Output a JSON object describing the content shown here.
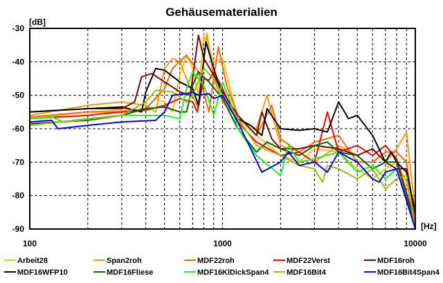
{
  "chart_data": {
    "type": "line",
    "title": "Gehäusematerialien",
    "ylabel": "[dB]",
    "xlabel": "[Hz]",
    "xscale": "log",
    "xlim": [
      100,
      10000
    ],
    "ylim": [
      -90,
      -30
    ],
    "yticks": [
      -30,
      -40,
      -50,
      -60,
      -70,
      -80,
      -90
    ],
    "xticks": [
      100,
      1000,
      10000
    ],
    "grid": true,
    "legend_placement": "bottom",
    "series": [
      {
        "name": "Arbeit28",
        "color": "#ffc000",
        "points": [
          [
            100,
            -57
          ],
          [
            200,
            -55
          ],
          [
            300,
            -54.5
          ],
          [
            400,
            -54
          ],
          [
            450,
            -51
          ],
          [
            500,
            -52
          ],
          [
            550,
            -55
          ],
          [
            600,
            -44
          ],
          [
            650,
            -38
          ],
          [
            700,
            -42
          ],
          [
            750,
            -50
          ],
          [
            800,
            -32
          ],
          [
            900,
            -40
          ],
          [
            1000,
            -39
          ],
          [
            1200,
            -57
          ],
          [
            1500,
            -62
          ],
          [
            2000,
            -68
          ],
          [
            2500,
            -70
          ],
          [
            3000,
            -66
          ],
          [
            4000,
            -67
          ],
          [
            5000,
            -72
          ],
          [
            6000,
            -75
          ],
          [
            7000,
            -72
          ],
          [
            8000,
            -70
          ],
          [
            9000,
            -76
          ],
          [
            10000,
            -87
          ]
        ]
      },
      {
        "name": "Span2roh",
        "color": "#ff9900",
        "points": [
          [
            100,
            -56
          ],
          [
            200,
            -53
          ],
          [
            300,
            -52
          ],
          [
            400,
            -53
          ],
          [
            450,
            -55
          ],
          [
            500,
            -42
          ],
          [
            550,
            -39
          ],
          [
            600,
            -40
          ],
          [
            650,
            -45
          ],
          [
            700,
            -50
          ],
          [
            750,
            -54
          ],
          [
            830,
            -31.5
          ],
          [
            900,
            -45
          ],
          [
            1000,
            -52
          ],
          [
            1200,
            -57
          ],
          [
            1500,
            -60
          ],
          [
            1700,
            -50
          ],
          [
            2000,
            -65
          ],
          [
            2500,
            -67
          ],
          [
            3000,
            -70
          ],
          [
            4000,
            -65
          ],
          [
            5000,
            -68
          ],
          [
            6000,
            -72
          ],
          [
            7000,
            -70
          ],
          [
            8000,
            -66
          ],
          [
            9000,
            -61
          ],
          [
            10000,
            -85
          ]
        ]
      },
      {
        "name": "MDF22roh",
        "color": "#ff6600",
        "points": [
          [
            100,
            -56.5
          ],
          [
            200,
            -55
          ],
          [
            300,
            -55
          ],
          [
            400,
            -54
          ],
          [
            500,
            -48
          ],
          [
            550,
            -42
          ],
          [
            650,
            -38
          ],
          [
            750,
            -43
          ],
          [
            850,
            -55
          ],
          [
            950,
            -35.5
          ],
          [
            1050,
            -47
          ],
          [
            1200,
            -56
          ],
          [
            1500,
            -62
          ],
          [
            1800,
            -53
          ],
          [
            2000,
            -63
          ],
          [
            2500,
            -67
          ],
          [
            3000,
            -64
          ],
          [
            4000,
            -62
          ],
          [
            5000,
            -70
          ],
          [
            6000,
            -70
          ],
          [
            7000,
            -67
          ],
          [
            8000,
            -67
          ],
          [
            9000,
            -70
          ],
          [
            10000,
            -88
          ]
        ]
      },
      {
        "name": "MDF22Verst",
        "color": "#ff0000",
        "points": [
          [
            100,
            -57
          ],
          [
            200,
            -56
          ],
          [
            300,
            -55
          ],
          [
            400,
            -54.5
          ],
          [
            500,
            -53
          ],
          [
            600,
            -51
          ],
          [
            700,
            -52
          ],
          [
            740,
            -55
          ],
          [
            800,
            -45
          ],
          [
            850,
            -45.5
          ],
          [
            900,
            -43
          ],
          [
            1000,
            -48
          ],
          [
            1200,
            -58
          ],
          [
            1500,
            -64
          ],
          [
            2000,
            -68
          ],
          [
            2500,
            -67
          ],
          [
            3000,
            -70
          ],
          [
            3500,
            -55
          ],
          [
            4000,
            -67
          ],
          [
            5000,
            -65
          ],
          [
            6000,
            -68
          ],
          [
            7000,
            -65
          ],
          [
            8000,
            -69
          ],
          [
            10000,
            -88
          ]
        ]
      },
      {
        "name": "MDF16roh",
        "color": "#800000",
        "points": [
          [
            100,
            -55
          ],
          [
            200,
            -54
          ],
          [
            300,
            -54
          ],
          [
            350,
            -52
          ],
          [
            380,
            -44.5
          ],
          [
            430,
            -43.5
          ],
          [
            500,
            -46
          ],
          [
            600,
            -49
          ],
          [
            680,
            -50
          ],
          [
            750,
            -32
          ],
          [
            800,
            -39
          ],
          [
            900,
            -44
          ],
          [
            1000,
            -49
          ],
          [
            1200,
            -56
          ],
          [
            1500,
            -62
          ],
          [
            1600,
            -55
          ],
          [
            1800,
            -63
          ],
          [
            2000,
            -66
          ],
          [
            2500,
            -66
          ],
          [
            3000,
            -65
          ],
          [
            4000,
            -66
          ],
          [
            5000,
            -68
          ],
          [
            6000,
            -66
          ],
          [
            7000,
            -70
          ],
          [
            8000,
            -72
          ],
          [
            9000,
            -72
          ],
          [
            10000,
            -86
          ]
        ]
      },
      {
        "name": "MDF16WFP10",
        "color": "#000000",
        "points": [
          [
            100,
            -55
          ],
          [
            200,
            -54
          ],
          [
            300,
            -53.5
          ],
          [
            380,
            -55
          ],
          [
            400,
            -49
          ],
          [
            450,
            -42
          ],
          [
            500,
            -42.5
          ],
          [
            600,
            -46
          ],
          [
            700,
            -48
          ],
          [
            750,
            -53
          ],
          [
            820,
            -34
          ],
          [
            900,
            -42
          ],
          [
            1000,
            -50
          ],
          [
            1200,
            -57
          ],
          [
            1400,
            -59
          ],
          [
            1600,
            -62
          ],
          [
            1700,
            -54
          ],
          [
            2000,
            -60
          ],
          [
            2500,
            -60.5
          ],
          [
            3000,
            -60
          ],
          [
            3500,
            -61
          ],
          [
            4000,
            -52
          ],
          [
            4500,
            -57
          ],
          [
            5000,
            -56
          ],
          [
            6000,
            -62
          ],
          [
            7000,
            -70
          ],
          [
            7500,
            -67
          ],
          [
            8000,
            -70
          ],
          [
            9000,
            -73
          ],
          [
            10000,
            -85
          ]
        ]
      },
      {
        "name": "MDF16Fliese",
        "color": "#006600",
        "points": [
          [
            100,
            -58.5
          ],
          [
            200,
            -57.5
          ],
          [
            300,
            -56
          ],
          [
            400,
            -54
          ],
          [
            500,
            -53.5
          ],
          [
            600,
            -55
          ],
          [
            650,
            -55
          ],
          [
            700,
            -47
          ],
          [
            750,
            -43
          ],
          [
            850,
            -46
          ],
          [
            1000,
            -51
          ],
          [
            1200,
            -60
          ],
          [
            1500,
            -67
          ],
          [
            1700,
            -64
          ],
          [
            2000,
            -66
          ],
          [
            2500,
            -68
          ],
          [
            3000,
            -65
          ],
          [
            3500,
            -64
          ],
          [
            4000,
            -67
          ],
          [
            5000,
            -68
          ],
          [
            6000,
            -72
          ],
          [
            7000,
            -70
          ],
          [
            8000,
            -70
          ],
          [
            10000,
            -89
          ]
        ]
      },
      {
        "name": "MDF16KlDickSpan4",
        "color": "#22ee22",
        "points": [
          [
            100,
            -57
          ],
          [
            130,
            -56.5
          ],
          [
            150,
            -58
          ],
          [
            300,
            -56
          ],
          [
            500,
            -56
          ],
          [
            600,
            -57
          ],
          [
            650,
            -48
          ],
          [
            700,
            -43
          ],
          [
            800,
            -47
          ],
          [
            900,
            -56
          ],
          [
            1000,
            -46
          ],
          [
            1100,
            -52
          ],
          [
            1200,
            -60
          ],
          [
            1500,
            -68
          ],
          [
            2000,
            -74
          ],
          [
            2200,
            -65
          ],
          [
            2500,
            -70
          ],
          [
            3000,
            -69
          ],
          [
            4000,
            -67
          ],
          [
            5000,
            -73
          ],
          [
            6000,
            -71
          ],
          [
            7000,
            -75
          ],
          [
            8000,
            -72
          ],
          [
            10000,
            -90
          ]
        ]
      },
      {
        "name": "MDF16Bit4",
        "color": "#99bb00",
        "points": [
          [
            100,
            -59
          ],
          [
            200,
            -57
          ],
          [
            300,
            -56
          ],
          [
            400,
            -52
          ],
          [
            450,
            -48.5
          ],
          [
            550,
            -49
          ],
          [
            650,
            -52
          ],
          [
            700,
            -50
          ],
          [
            800,
            -42
          ],
          [
            900,
            -45
          ],
          [
            1000,
            -50
          ],
          [
            1200,
            -57
          ],
          [
            1500,
            -65
          ],
          [
            2000,
            -68
          ],
          [
            2500,
            -71
          ],
          [
            3000,
            -72
          ],
          [
            3300,
            -76
          ],
          [
            3500,
            -71
          ],
          [
            4000,
            -72
          ],
          [
            5000,
            -75
          ],
          [
            6000,
            -72
          ],
          [
            7000,
            -78
          ],
          [
            8000,
            -75
          ],
          [
            9000,
            -74
          ],
          [
            10000,
            -90
          ]
        ]
      },
      {
        "name": "MDF16Bit4Span4",
        "color": "#0000ff",
        "points": [
          [
            100,
            -58
          ],
          [
            130,
            -57.5
          ],
          [
            140,
            -60
          ],
          [
            200,
            -59
          ],
          [
            300,
            -58
          ],
          [
            450,
            -57.5
          ],
          [
            500,
            -55
          ],
          [
            550,
            -50
          ],
          [
            650,
            -49.5
          ],
          [
            700,
            -49
          ],
          [
            750,
            -50
          ],
          [
            850,
            -49.5
          ],
          [
            900,
            -51
          ],
          [
            1000,
            -50
          ],
          [
            1200,
            -58
          ],
          [
            1400,
            -66
          ],
          [
            1600,
            -73
          ],
          [
            2000,
            -70
          ],
          [
            2200,
            -67
          ],
          [
            2500,
            -71
          ],
          [
            3000,
            -70
          ],
          [
            3500,
            -73
          ],
          [
            4000,
            -67
          ],
          [
            5000,
            -70
          ],
          [
            6000,
            -75
          ],
          [
            6500,
            -76
          ],
          [
            7000,
            -73
          ],
          [
            8000,
            -72
          ],
          [
            10000,
            -90
          ]
        ]
      }
    ]
  }
}
